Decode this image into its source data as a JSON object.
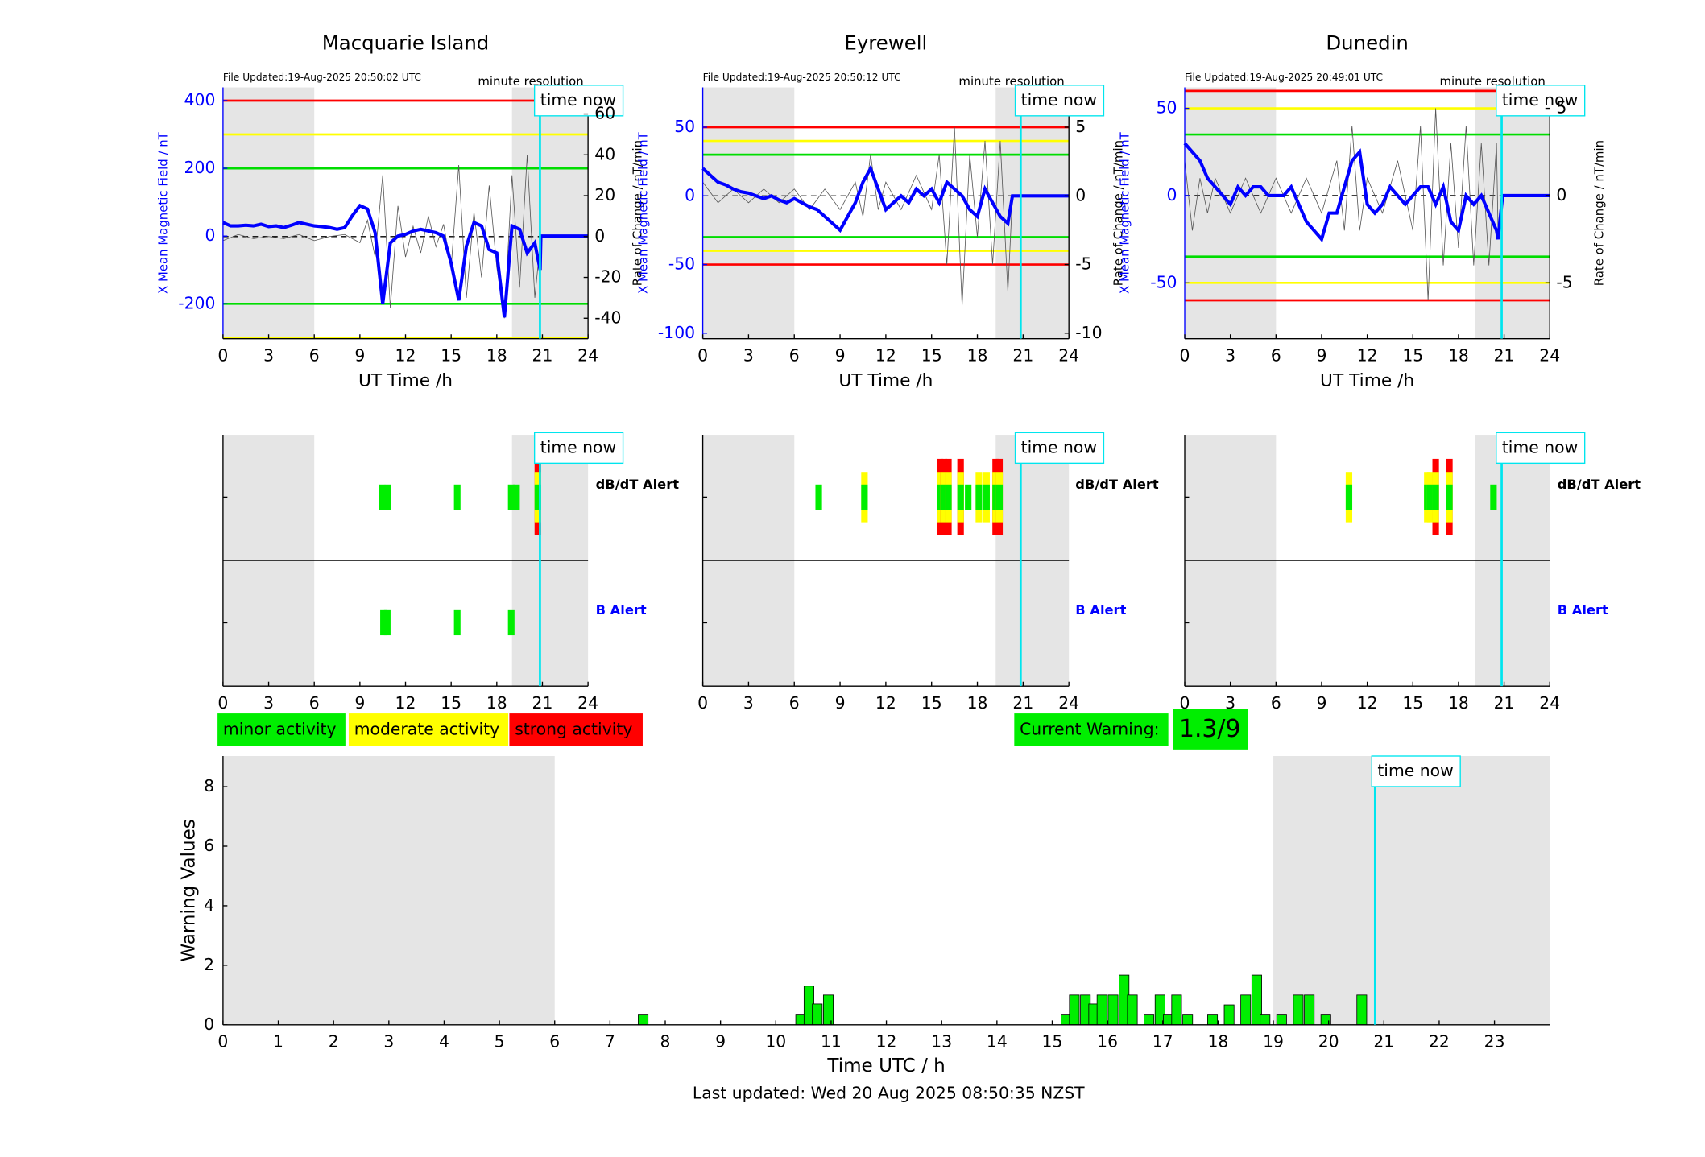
{
  "chart_data": [
    {
      "type": "line",
      "title": "Macquarie Island",
      "subtitle": "File Updated:19-Aug-2025 20:50:02 UTC",
      "annotation": "minute resolution",
      "time_now": 20.84,
      "time_now_label": "time now",
      "xlabel": "UT Time /h",
      "ylabel": "X Mean Magnetic Field / nT",
      "y2label": "Rate of Change / nT/min",
      "xlim": [
        0,
        24
      ],
      "xticks": [
        0,
        3,
        6,
        9,
        12,
        15,
        18,
        21,
        24
      ],
      "ylim": [
        -303,
        439
      ],
      "yticks": [
        -200,
        0,
        200,
        400
      ],
      "y2lim": [
        -50,
        73
      ],
      "y2ticks": [
        -40,
        -20,
        0,
        20,
        40,
        60
      ],
      "shade": [
        [
          0,
          6
        ],
        [
          19,
          24
        ]
      ],
      "thresholds": [
        {
          "value": 400,
          "color": "#ff0000"
        },
        {
          "value": 300,
          "color": "#ffff00"
        },
        {
          "value": 200,
          "color": "#00dd00"
        },
        {
          "value": -200,
          "color": "#00dd00"
        },
        {
          "value": -300,
          "color": "#ffff00"
        }
      ],
      "series": [
        {
          "name": "Rate of Change",
          "color": "#555555",
          "axis": "y2",
          "x": [
            0,
            1,
            2,
            3,
            4,
            5,
            6,
            7,
            8,
            9,
            9.5,
            10,
            10.5,
            11,
            11.5,
            12,
            12.5,
            13,
            13.5,
            14,
            14.5,
            15,
            15.5,
            16,
            16.5,
            17,
            17.5,
            18,
            18.5,
            19,
            19.5,
            20,
            20.5,
            20.9
          ],
          "values": [
            -2,
            1,
            -1,
            0,
            -1,
            1,
            -2,
            0,
            1,
            -3,
            8,
            -10,
            30,
            -35,
            15,
            -10,
            5,
            -8,
            10,
            -5,
            6,
            -15,
            35,
            -30,
            12,
            -20,
            25,
            -15,
            -40,
            30,
            -25,
            40,
            -30,
            0
          ]
        },
        {
          "name": "X Mean Magnetic Field",
          "color": "#0000ff",
          "x": [
            0,
            0.5,
            1,
            1.5,
            2,
            2.5,
            3,
            3.5,
            4,
            4.5,
            5,
            5.5,
            6,
            6.5,
            7,
            7.5,
            8,
            8.5,
            9,
            9.5,
            10,
            10.5,
            11,
            11.5,
            12,
            12.5,
            13,
            13.5,
            14,
            14.5,
            15,
            15.5,
            16,
            16.5,
            17,
            17.5,
            18,
            18.5,
            19,
            19.5,
            20,
            20.5,
            20.85,
            20.9,
            24
          ],
          "values": [
            40,
            30,
            30,
            32,
            30,
            35,
            28,
            30,
            25,
            32,
            40,
            35,
            30,
            28,
            25,
            20,
            25,
            60,
            90,
            80,
            10,
            -200,
            -20,
            0,
            5,
            15,
            20,
            15,
            10,
            0,
            -80,
            -190,
            -30,
            40,
            30,
            -40,
            -50,
            -240,
            30,
            20,
            -50,
            -20,
            -100,
            0,
            0
          ]
        }
      ]
    },
    {
      "type": "line",
      "title": "Eyrewell",
      "subtitle": "File Updated:19-Aug-2025 20:50:12 UTC",
      "annotation": "minute resolution",
      "time_now": 20.84,
      "time_now_label": "time now",
      "xlabel": "UT Time /h",
      "ylabel": "X Mean Magnetic Field / nT",
      "y2label": "Rate of Change / nT/min",
      "xlim": [
        0,
        24
      ],
      "xticks": [
        0,
        3,
        6,
        9,
        12,
        15,
        18,
        21,
        24
      ],
      "ylim": [
        -104,
        79
      ],
      "yticks": [
        -100,
        -50,
        0,
        50
      ],
      "y2lim": [
        -10.4,
        7.9
      ],
      "y2ticks": [
        -10,
        -5,
        0,
        5
      ],
      "shade": [
        [
          0,
          6
        ],
        [
          19.2,
          24
        ]
      ],
      "thresholds": [
        {
          "value": 50,
          "color": "#ff0000"
        },
        {
          "value": 40,
          "color": "#ffff00"
        },
        {
          "value": 30,
          "color": "#00dd00"
        },
        {
          "value": -30,
          "color": "#00dd00"
        },
        {
          "value": -40,
          "color": "#ffff00"
        },
        {
          "value": -50,
          "color": "#ff0000"
        }
      ],
      "series": [
        {
          "name": "Rate of Change",
          "color": "#555555",
          "axis": "y2",
          "x": [
            0,
            1,
            2,
            3,
            4,
            5,
            6,
            7,
            8,
            9,
            10,
            10.5,
            11,
            11.5,
            12,
            13,
            14,
            15,
            15.5,
            16,
            16.5,
            17,
            17.5,
            18,
            18.5,
            19,
            19.5,
            20,
            20.3
          ],
          "values": [
            1,
            -0.5,
            0.5,
            -0.5,
            0.5,
            -0.5,
            0.5,
            -1,
            0.5,
            -1,
            1,
            -1.5,
            3,
            -1,
            1,
            -1,
            1.5,
            -1,
            3,
            -5,
            5,
            -8,
            3,
            -3,
            4,
            -5,
            4,
            -7,
            0
          ]
        },
        {
          "name": "X Mean Magnetic Field",
          "color": "#0000ff",
          "x": [
            0,
            0.5,
            1,
            1.5,
            2,
            2.5,
            3,
            3.5,
            4,
            4.5,
            5,
            5.5,
            6,
            6.5,
            7,
            7.5,
            8,
            8.5,
            9,
            9.5,
            10,
            10.5,
            11,
            11.5,
            12,
            12.5,
            13,
            13.5,
            14,
            14.5,
            15,
            15.5,
            16,
            16.5,
            17,
            17.5,
            18,
            18.5,
            19,
            19.5,
            20,
            20.3,
            24
          ],
          "values": [
            20,
            15,
            10,
            8,
            5,
            3,
            2,
            0,
            -2,
            0,
            -3,
            -5,
            -2,
            -5,
            -8,
            -10,
            -15,
            -20,
            -25,
            -15,
            -5,
            10,
            20,
            5,
            -10,
            -5,
            0,
            -5,
            5,
            0,
            5,
            -5,
            10,
            5,
            0,
            -10,
            -15,
            5,
            -5,
            -15,
            -20,
            0,
            0
          ]
        }
      ]
    },
    {
      "type": "line",
      "title": "Dunedin",
      "subtitle": "File Updated:19-Aug-2025 20:49:01 UTC",
      "annotation": "minute resolution",
      "time_now": 20.84,
      "time_now_label": "time now",
      "xlabel": "UT Time /h",
      "ylabel": "X Mean Magnetic Field / nT",
      "y2label": "Rate of Change / nT/min",
      "xlim": [
        0,
        24
      ],
      "xticks": [
        0,
        3,
        6,
        9,
        12,
        15,
        18,
        21,
        24
      ],
      "ylim": [
        -82,
        62
      ],
      "yticks": [
        -50,
        0,
        50
      ],
      "y2lim": [
        -8.2,
        6.2
      ],
      "y2ticks": [
        -5,
        0,
        5
      ],
      "shade": [
        [
          0,
          6
        ],
        [
          19.1,
          24
        ]
      ],
      "thresholds": [
        {
          "value": 60,
          "color": "#ff0000"
        },
        {
          "value": 50,
          "color": "#ffff00"
        },
        {
          "value": 35,
          "color": "#00dd00"
        },
        {
          "value": -35,
          "color": "#00dd00"
        },
        {
          "value": -50,
          "color": "#ffff00"
        },
        {
          "value": -60,
          "color": "#ff0000"
        }
      ],
      "series": [
        {
          "name": "Rate of Change",
          "color": "#555555",
          "axis": "y2",
          "x": [
            0,
            0.5,
            1,
            1.5,
            2,
            3,
            4,
            5,
            6,
            7,
            8,
            9,
            10,
            10.5,
            11,
            11.5,
            12,
            13,
            14,
            15,
            15.5,
            16,
            16.5,
            17,
            17.5,
            18,
            18.5,
            19,
            19.5,
            20,
            20.5,
            20.6
          ],
          "values": [
            2,
            -2,
            1,
            -1,
            1,
            -1,
            1,
            -1,
            1,
            -1,
            1,
            -1,
            2,
            -2,
            4,
            -2,
            1,
            -1,
            2,
            -2,
            4,
            -6,
            5,
            -4,
            3,
            -3,
            4,
            -4,
            3,
            -4,
            3,
            -2
          ]
        },
        {
          "name": "X Mean Magnetic Field",
          "color": "#0000ff",
          "x": [
            0,
            0.5,
            1,
            1.5,
            2,
            2.5,
            3,
            3.5,
            4,
            4.5,
            5,
            5.5,
            6,
            6.5,
            7,
            7.5,
            8,
            8.5,
            9,
            9.5,
            10,
            10.5,
            11,
            11.5,
            12,
            12.5,
            13,
            13.5,
            14,
            14.5,
            15,
            15.5,
            16,
            16.5,
            17,
            17.5,
            18,
            18.5,
            19,
            19.5,
            20,
            20.5,
            20.6,
            20.9,
            24
          ],
          "values": [
            30,
            25,
            20,
            10,
            5,
            0,
            -5,
            5,
            0,
            5,
            5,
            0,
            0,
            0,
            5,
            -5,
            -15,
            -20,
            -25,
            -10,
            -10,
            5,
            20,
            25,
            -5,
            -10,
            -5,
            5,
            0,
            -5,
            0,
            5,
            5,
            -5,
            5,
            -15,
            -20,
            0,
            -5,
            0,
            -10,
            -20,
            -25,
            0,
            0
          ]
        }
      ]
    },
    {
      "type": "timeline",
      "time_now": 20.84,
      "time_now_label": "time now",
      "xlim": [
        0,
        24
      ],
      "xticks": [
        0,
        3,
        6,
        9,
        12,
        15,
        18,
        21,
        24
      ],
      "shade": [
        [
          0,
          6
        ],
        [
          19,
          24
        ]
      ],
      "level_colors": [
        "#00ee00",
        "#ffff00",
        "#ff0000"
      ],
      "series": [
        {
          "name": "dB/dT Alert",
          "color": "#000000",
          "x": [
            10.45,
            10.85,
            15.4,
            18.95,
            19.3,
            20.7
          ],
          "values": [
            1,
            1,
            1,
            1,
            1,
            3
          ]
        },
        {
          "name": "B Alert",
          "color": "#0000ff",
          "x": [
            10.55,
            10.8,
            15.4,
            18.95
          ],
          "values": [
            1,
            1,
            1,
            1
          ]
        }
      ]
    },
    {
      "type": "timeline",
      "time_now": 20.84,
      "time_now_label": "time now",
      "xlim": [
        0,
        24
      ],
      "xticks": [
        0,
        3,
        6,
        9,
        12,
        15,
        18,
        21,
        24
      ],
      "shade": [
        [
          0,
          6
        ],
        [
          19.2,
          24
        ]
      ],
      "level_colors": [
        "#00ee00",
        "#ffff00",
        "#ff0000"
      ],
      "series": [
        {
          "name": "dB/dT Alert",
          "color": "#000000",
          "x": [
            7.6,
            10.6,
            15.55,
            15.8,
            16.1,
            16.9,
            17.4,
            18.1,
            18.6,
            19.2,
            19.45
          ],
          "values": [
            1,
            2,
            3,
            3,
            3,
            3,
            1,
            2,
            2,
            3,
            3
          ]
        },
        {
          "name": "B Alert",
          "color": "#0000ff",
          "x": [],
          "values": []
        }
      ]
    },
    {
      "type": "timeline",
      "time_now": 20.84,
      "time_now_label": "time now",
      "xlim": [
        0,
        24
      ],
      "xticks": [
        0,
        3,
        6,
        9,
        12,
        15,
        18,
        21,
        24
      ],
      "shade": [
        [
          0,
          6
        ],
        [
          19.1,
          24
        ]
      ],
      "level_colors": [
        "#00ee00",
        "#ffff00",
        "#ff0000"
      ],
      "series": [
        {
          "name": "dB/dT Alert",
          "color": "#000000",
          "x": [
            10.8,
            15.95,
            16.15,
            16.5,
            17.4,
            20.3
          ],
          "values": [
            2,
            2,
            2,
            3,
            3,
            1
          ]
        },
        {
          "name": "B Alert",
          "color": "#0000ff",
          "x": [],
          "values": []
        }
      ]
    },
    {
      "type": "bar",
      "time_now": 20.84,
      "time_now_label": "time now",
      "xlabel": "Time UTC / h",
      "ylabel": "Warning Values",
      "footer": "Last updated: Wed 20 Aug 2025 08:50:35 NZST",
      "legend": [
        {
          "name": "minor activity",
          "color": "#00ee00"
        },
        {
          "name": "moderate activity",
          "color": "#ffff00"
        },
        {
          "name": "strong activity",
          "color": "#ff0000"
        }
      ],
      "current_warning_label": "Current Warning:",
      "current_warning_value": "1.3/9",
      "xlim": [
        0,
        24
      ],
      "xticks": [
        0,
        1,
        2,
        3,
        4,
        5,
        6,
        7,
        8,
        9,
        10,
        11,
        12,
        13,
        14,
        15,
        16,
        17,
        18,
        19,
        20,
        21,
        22,
        23
      ],
      "ylim": [
        0,
        9.03
      ],
      "yticks": [
        0,
        2,
        4,
        6,
        8
      ],
      "shade": [
        [
          0,
          6
        ],
        [
          19,
          24
        ]
      ],
      "color": "#00ee00",
      "x": [
        7.6,
        10.45,
        10.6,
        10.75,
        10.95,
        15.25,
        15.4,
        15.6,
        15.75,
        15.9,
        16.1,
        16.3,
        16.45,
        16.75,
        16.95,
        17.1,
        17.25,
        17.45,
        17.9,
        18.2,
        18.5,
        18.7,
        18.85,
        19.15,
        19.45,
        19.65,
        19.95,
        20.6
      ],
      "values": [
        0.33,
        0.33,
        1.3,
        0.7,
        1.0,
        0.33,
        1.0,
        1.0,
        0.7,
        1.0,
        1.0,
        1.67,
        1.0,
        0.33,
        1.0,
        0.33,
        1.0,
        0.33,
        0.33,
        0.67,
        1.0,
        1.67,
        0.33,
        0.33,
        1.0,
        1.0,
        0.33,
        1.0
      ]
    }
  ]
}
